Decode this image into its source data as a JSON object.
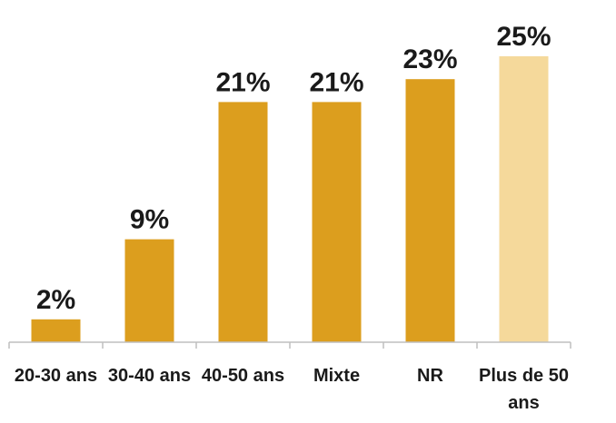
{
  "chart_data": {
    "type": "bar",
    "categories": [
      "20-30 ans",
      "30-40 ans",
      "40-50 ans",
      "Mixte",
      "NR",
      "Plus de 50 ans"
    ],
    "values": [
      2,
      9,
      21,
      21,
      23,
      25
    ],
    "labels": [
      "2%",
      "9%",
      "21%",
      "21%",
      "23%",
      "25%"
    ],
    "unit": "%",
    "title": "",
    "xlabel": "",
    "ylabel": "",
    "ylim": [
      0,
      25
    ],
    "grid": false,
    "legend": "none",
    "colors": {
      "bar": "#dc9e1e",
      "highlight_bar": "#f5d99b",
      "highlight_index": 5,
      "text": "#1a1a1a",
      "axis": "#bfbfbf"
    }
  }
}
